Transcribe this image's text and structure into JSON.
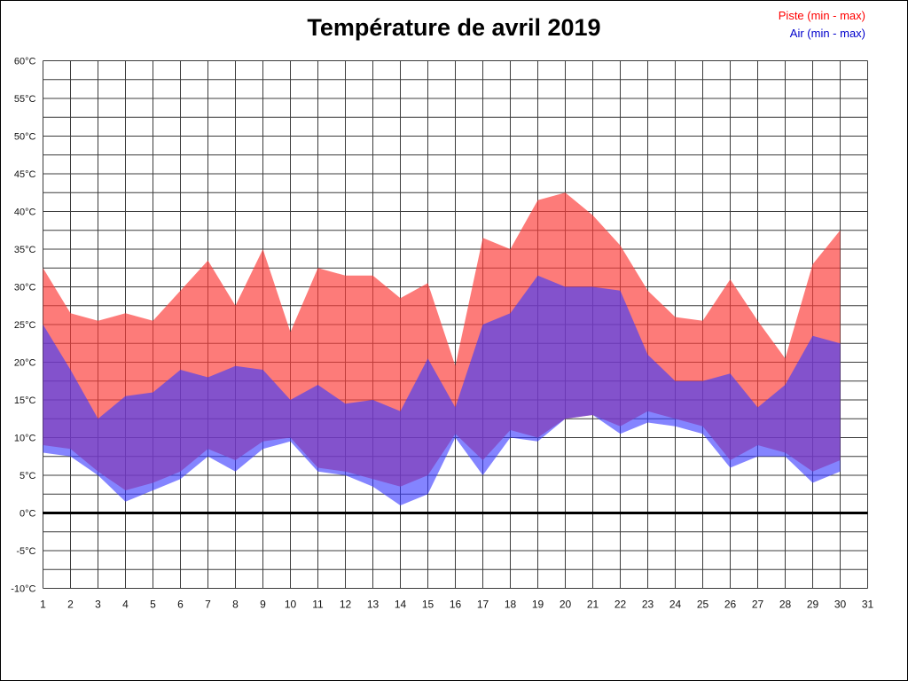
{
  "page": {
    "background": "#ffffff",
    "border_color": "#000000"
  },
  "header": {
    "title": "Température de avril 2019"
  },
  "legend": {
    "piste": {
      "label": "Piste (min - max)",
      "color": "#ff0000"
    },
    "air": {
      "label": "Air (min - max)",
      "color": "#0000cc"
    }
  },
  "chart_data": {
    "type": "area",
    "title": "Température de avril 2019",
    "unit": "°C",
    "grid": true,
    "grid_color": "#3c3c3c",
    "zero_line": 0,
    "legend_position": "top-right",
    "x": [
      1,
      2,
      3,
      4,
      5,
      6,
      7,
      8,
      9,
      10,
      11,
      12,
      13,
      14,
      15,
      16,
      17,
      18,
      19,
      20,
      21,
      22,
      23,
      24,
      25,
      26,
      27,
      28,
      29,
      30
    ],
    "x_axis": {
      "ticks": [
        1,
        2,
        3,
        4,
        5,
        6,
        7,
        8,
        9,
        10,
        11,
        12,
        13,
        14,
        15,
        16,
        17,
        18,
        19,
        20,
        21,
        22,
        23,
        24,
        25,
        26,
        27,
        28,
        29,
        30,
        31
      ]
    },
    "y_axis": {
      "min": -10,
      "max": 60,
      "tick_step": 5,
      "grid_step": 2.5,
      "tick_labels": [
        "60°C",
        "55°C",
        "50°C",
        "45°C",
        "40°C",
        "35°C",
        "30°C",
        "25°C",
        "20°C",
        "15°C",
        "10°C",
        "5°C",
        "0°C",
        "-5°C",
        "-10°C"
      ]
    },
    "series": [
      {
        "id": "piste",
        "name": "Piste (min - max)",
        "legend_color": "#ff0000",
        "fill": "rgba(252,60,58,0.68)",
        "max": [
          32.5,
          26.5,
          25.5,
          26.5,
          25.5,
          29.5,
          33.5,
          27.5,
          35,
          24,
          32.5,
          31.5,
          31.5,
          28.5,
          30.5,
          19.5,
          36.5,
          35,
          41.5,
          42.5,
          39.5,
          35.5,
          29.5,
          26,
          25.5,
          31,
          25.5,
          20.5,
          33,
          37.5
        ],
        "min": [
          9,
          8.5,
          5.5,
          3,
          4,
          5.5,
          8.5,
          7,
          9.5,
          10,
          6,
          5.5,
          4.5,
          3.5,
          5,
          10.5,
          7,
          11,
          10,
          12.5,
          13,
          11.5,
          13.5,
          12.5,
          11.5,
          7,
          9,
          8,
          5.5,
          7
        ]
      },
      {
        "id": "air",
        "name": "Air (min - max)",
        "legend_color": "#0000cc",
        "fill": "rgba(56,56,255,0.62)",
        "max": [
          25,
          19,
          12.5,
          15.5,
          16,
          19,
          18,
          19.5,
          19,
          15,
          17,
          14.5,
          15,
          13.5,
          20.5,
          14,
          25,
          26.5,
          31.5,
          30,
          30,
          29.5,
          21,
          17.5,
          17.5,
          18.5,
          14,
          17,
          23.5,
          22.5
        ],
        "min": [
          8,
          7.5,
          5,
          1.5,
          3,
          4.5,
          7.5,
          5.5,
          8.5,
          9.5,
          5.5,
          5,
          3.5,
          1,
          2.5,
          10,
          5,
          10,
          9.5,
          12.5,
          13,
          10.5,
          12,
          11.5,
          10.5,
          6,
          7.5,
          7.5,
          4,
          5.5
        ]
      }
    ]
  }
}
